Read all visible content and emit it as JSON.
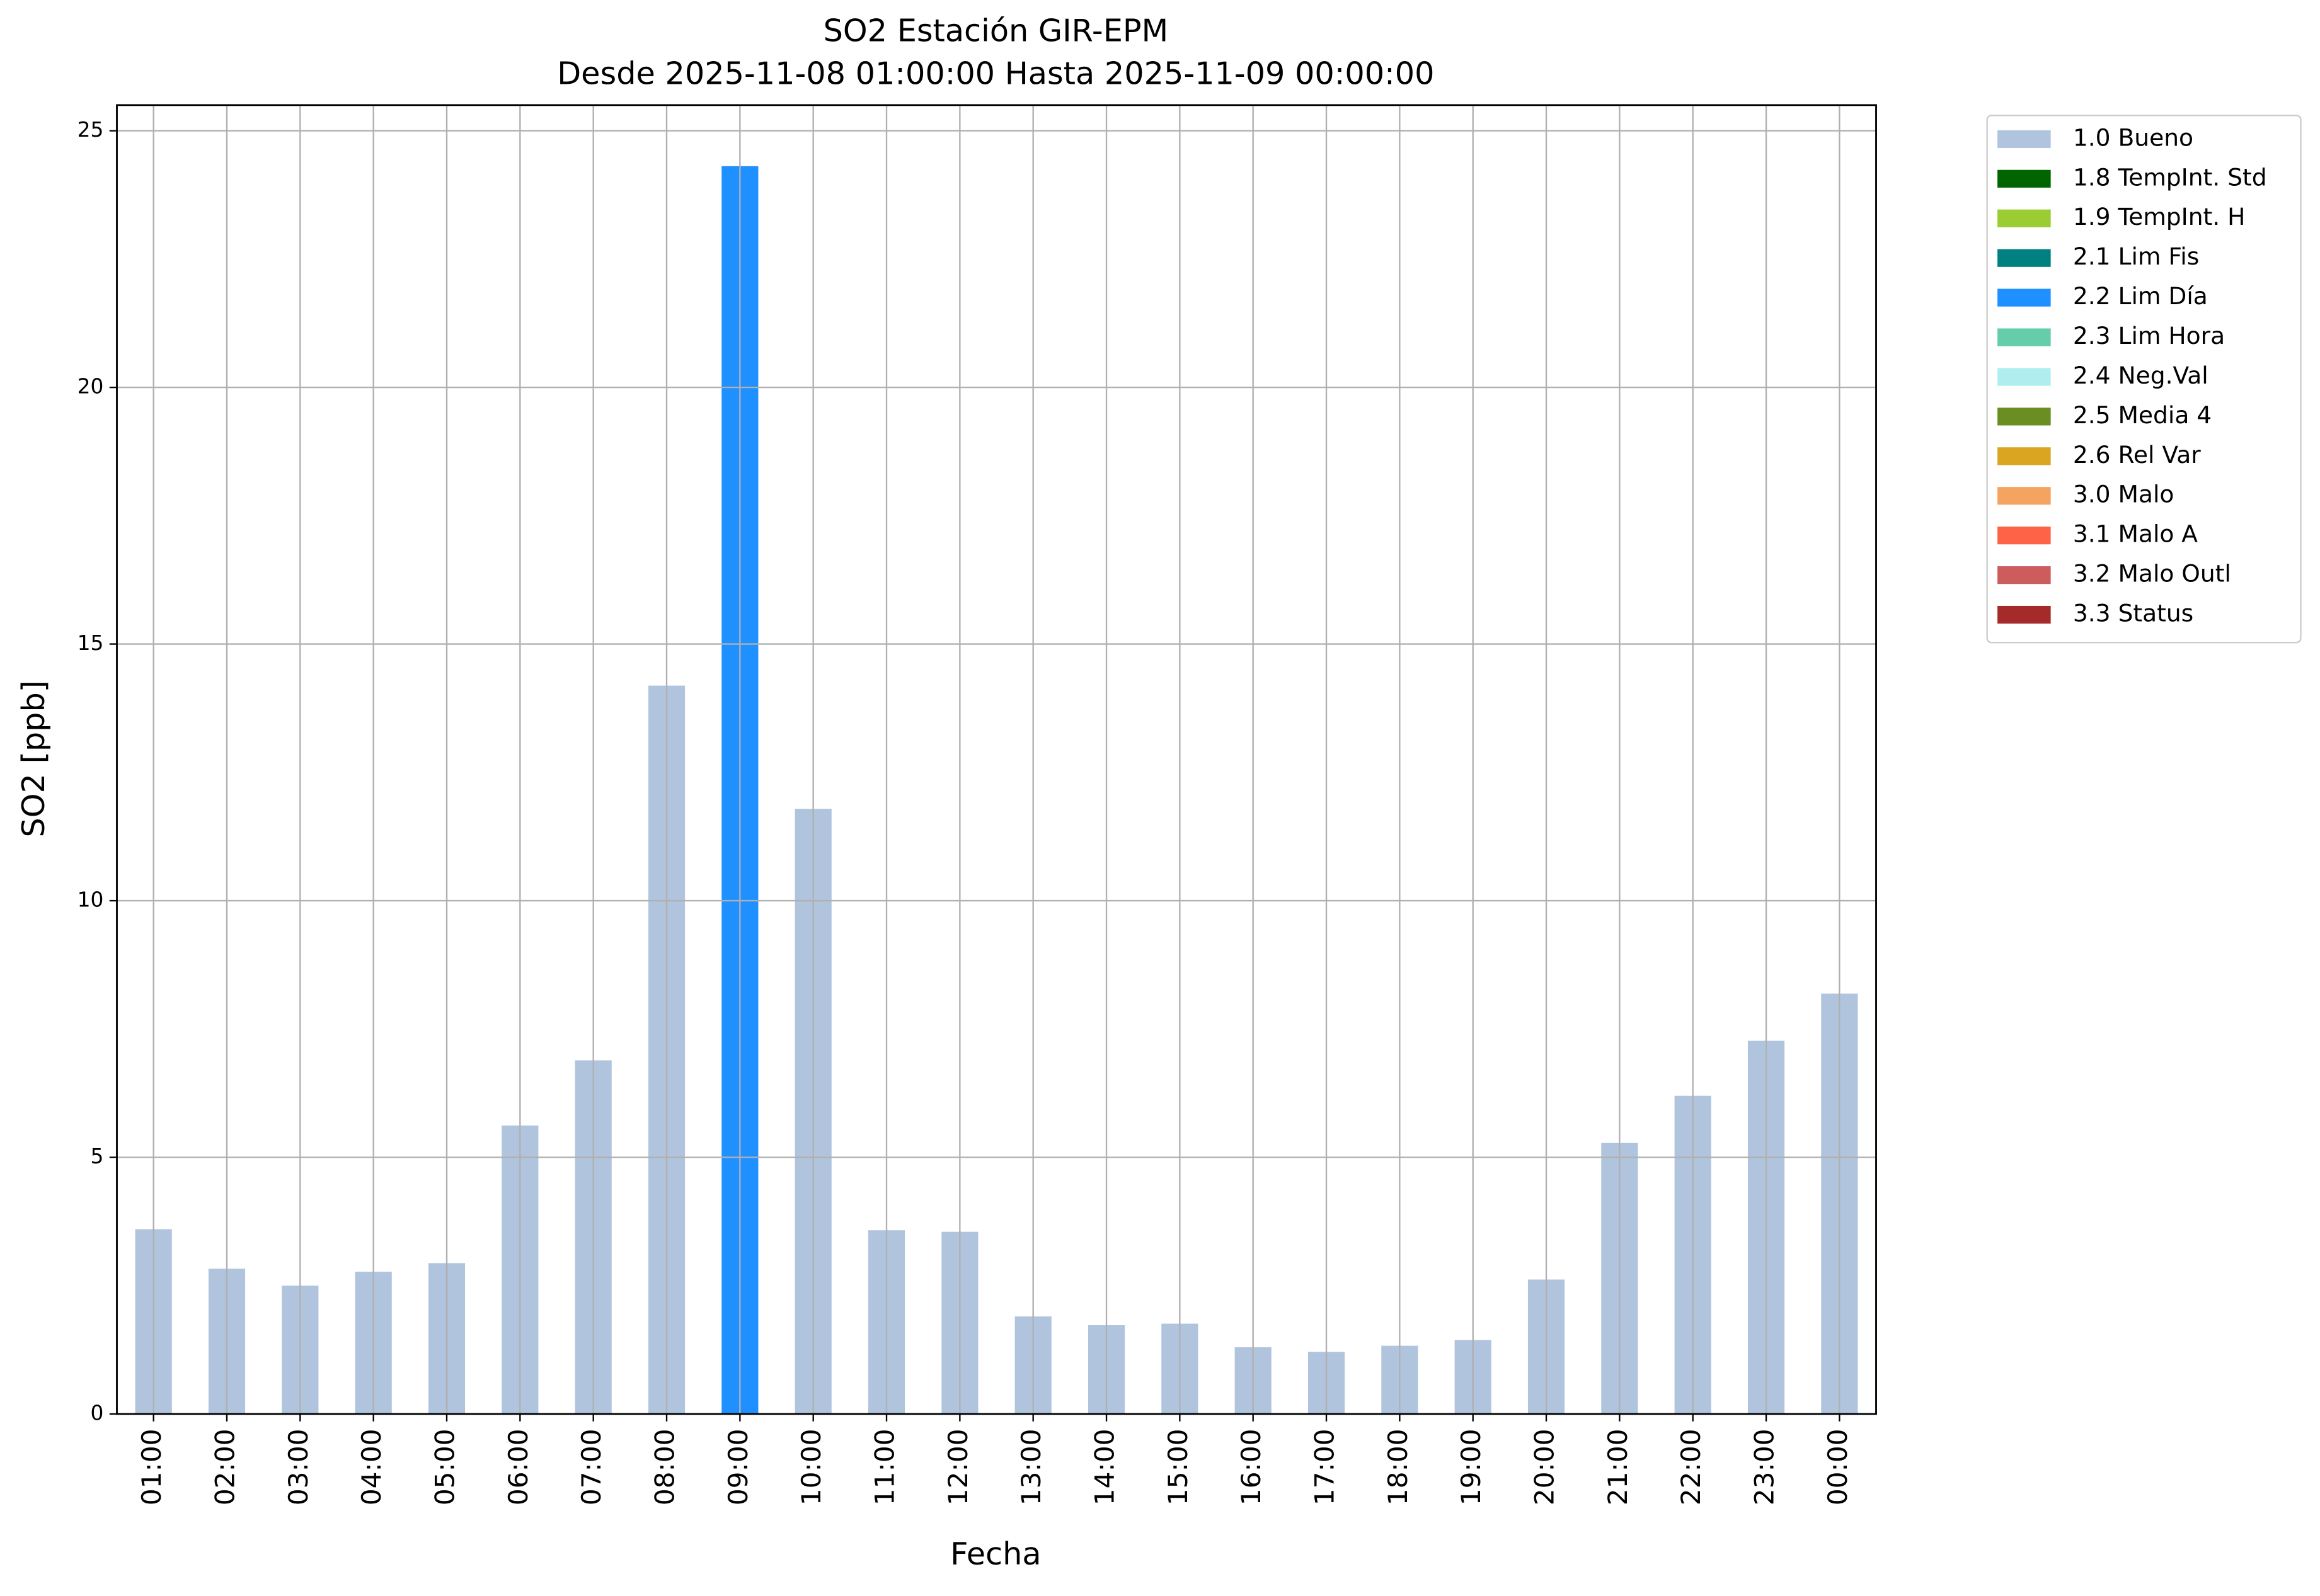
{
  "chart_data": {
    "type": "bar",
    "title": "SO2 Estación GIR-EPM",
    "subtitle": "Desde 2025-11-08 01:00:00 Hasta 2025-11-09 00:00:00",
    "x_label": "Fecha",
    "y_label": "SO2 [ppb]",
    "categories": [
      "01:00",
      "02:00",
      "03:00",
      "04:00",
      "05:00",
      "06:00",
      "07:00",
      "08:00",
      "09:00",
      "10:00",
      "11:00",
      "12:00",
      "13:00",
      "14:00",
      "15:00",
      "16:00",
      "17:00",
      "18:00",
      "19:00",
      "20:00",
      "21:00",
      "22:00",
      "23:00",
      "00:00"
    ],
    "values": [
      3.6,
      2.83,
      2.5,
      2.77,
      2.94,
      5.62,
      6.89,
      14.19,
      24.31,
      11.79,
      3.58,
      3.55,
      1.9,
      1.73,
      1.76,
      1.3,
      1.21,
      1.33,
      1.44,
      2.62,
      5.28,
      6.2,
      7.27,
      8.19
    ],
    "colors": [
      "#b0c4de",
      "#b0c4de",
      "#b0c4de",
      "#b0c4de",
      "#b0c4de",
      "#b0c4de",
      "#b0c4de",
      "#b0c4de",
      "#1e90ff",
      "#b0c4de",
      "#b0c4de",
      "#b0c4de",
      "#b0c4de",
      "#b0c4de",
      "#b0c4de",
      "#b0c4de",
      "#b0c4de",
      "#b0c4de",
      "#b0c4de",
      "#b0c4de",
      "#b0c4de",
      "#b0c4de",
      "#b0c4de",
      "#b0c4de"
    ],
    "ylim": [
      0,
      25.5
    ],
    "yticks": [
      0,
      5,
      10,
      15,
      20,
      25
    ],
    "grid": true,
    "legend_position": "outside-right",
    "legend": [
      {
        "label": "1.0 Bueno",
        "color": "#b0c4de"
      },
      {
        "label": "1.8 TempInt. Std",
        "color": "#006400"
      },
      {
        "label": "1.9 TempInt. H",
        "color": "#9acd32"
      },
      {
        "label": "2.1 Lim Fis",
        "color": "#008080"
      },
      {
        "label": "2.2 Lim Día",
        "color": "#1e90ff"
      },
      {
        "label": "2.3 Lim Hora",
        "color": "#66cdaa"
      },
      {
        "label": "2.4 Neg.Val",
        "color": "#afeeee"
      },
      {
        "label": "2.5 Media 4",
        "color": "#6b8e23"
      },
      {
        "label": "2.6 Rel Var",
        "color": "#daa520"
      },
      {
        "label": "3.0 Malo",
        "color": "#f4a460"
      },
      {
        "label": "3.1 Malo A",
        "color": "#ff6347"
      },
      {
        "label": "3.2 Malo Outl",
        "color": "#cd5c5c"
      },
      {
        "label": "3.3 Status",
        "color": "#a52a2a"
      }
    ]
  }
}
